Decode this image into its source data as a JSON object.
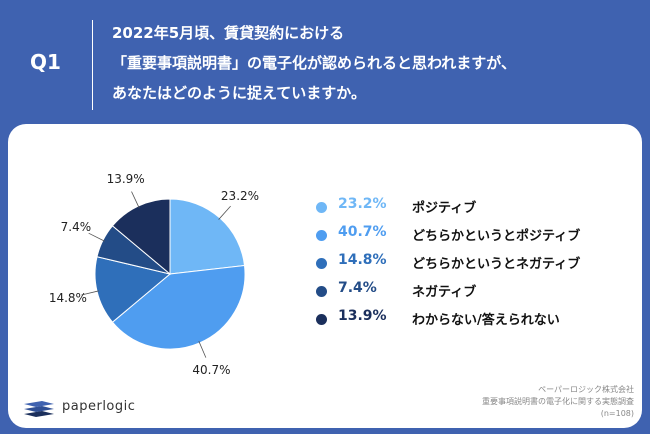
{
  "header": {
    "qlabel": "Q1",
    "question_lines": [
      "2022年5月頃、賃貸契約における",
      "「重要事項説明書」の電子化が認められると思われますが、",
      "あなたはどのように捉えていますか。"
    ]
  },
  "chart_data": {
    "type": "pie",
    "categories": [
      "ポジティブ",
      "どちらかというとポジティブ",
      "どちらかというとネガティブ",
      "ネガティブ",
      "わからない/答えられない"
    ],
    "values": [
      23.2,
      40.7,
      14.8,
      7.4,
      13.9
    ],
    "value_labels": [
      "23.2%",
      "40.7%",
      "14.8%",
      "7.4%",
      "13.9%"
    ],
    "colors": [
      "#6fb7f6",
      "#4f9df0",
      "#2f6fba",
      "#234c87",
      "#1b2f5c"
    ],
    "start_angle_deg": 0,
    "direction": "clockwise",
    "legend_position": "right"
  },
  "legend": {
    "values": [
      "23.2%",
      "40.7%",
      "14.8%",
      "7.4%",
      "13.9%"
    ],
    "names": [
      "ポジティブ",
      "どちらかというとポジティブ",
      "どちらかというとネガティブ",
      "ネガティブ",
      "わからない/答えられない"
    ]
  },
  "footer": {
    "logo_text": "paperlogic",
    "source_lines": [
      "ペーパーロジック株式会社",
      "重要事項説明書の電子化に関する実態調査",
      "(n=108)"
    ]
  }
}
